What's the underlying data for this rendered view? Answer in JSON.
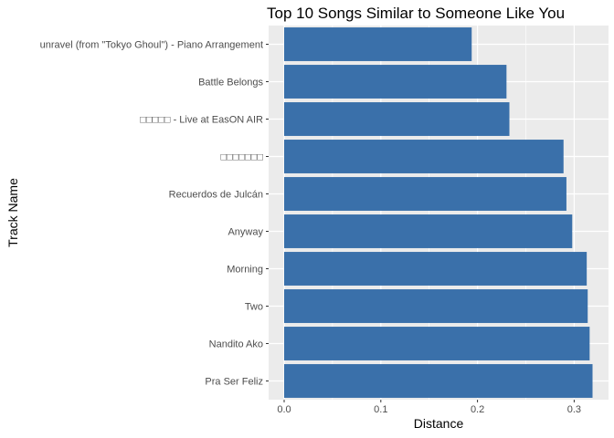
{
  "chart_data": {
    "type": "bar",
    "orientation": "horizontal",
    "title": "Top 10 Songs Similar to Someone Like You",
    "xlabel": "Distance",
    "ylabel": "Track Name",
    "xlim": [
      0,
      0.33
    ],
    "x_ticks": [
      0.0,
      0.1,
      0.2,
      0.3
    ],
    "x_tick_labels": [
      "0.0",
      "0.1",
      "0.2",
      "0.3"
    ],
    "grid": true,
    "legend": "none",
    "bar_color": "#3a70aa",
    "panel_background": "#ebebeb",
    "gridline_color": "#ffffff",
    "categories": [
      "unravel (from \"Tokyo Ghoul\") - Piano Arrangement",
      "Battle Belongs",
      "□□□□□ - Live at EasON AIR",
      "□□□□□□□",
      "Recuerdos de Julcán",
      "Anyway",
      "Morning",
      "Two",
      "Nandito Ako",
      "Pra Ser Feliz"
    ],
    "values": [
      0.194,
      0.23,
      0.233,
      0.289,
      0.292,
      0.298,
      0.313,
      0.314,
      0.316,
      0.319
    ]
  }
}
